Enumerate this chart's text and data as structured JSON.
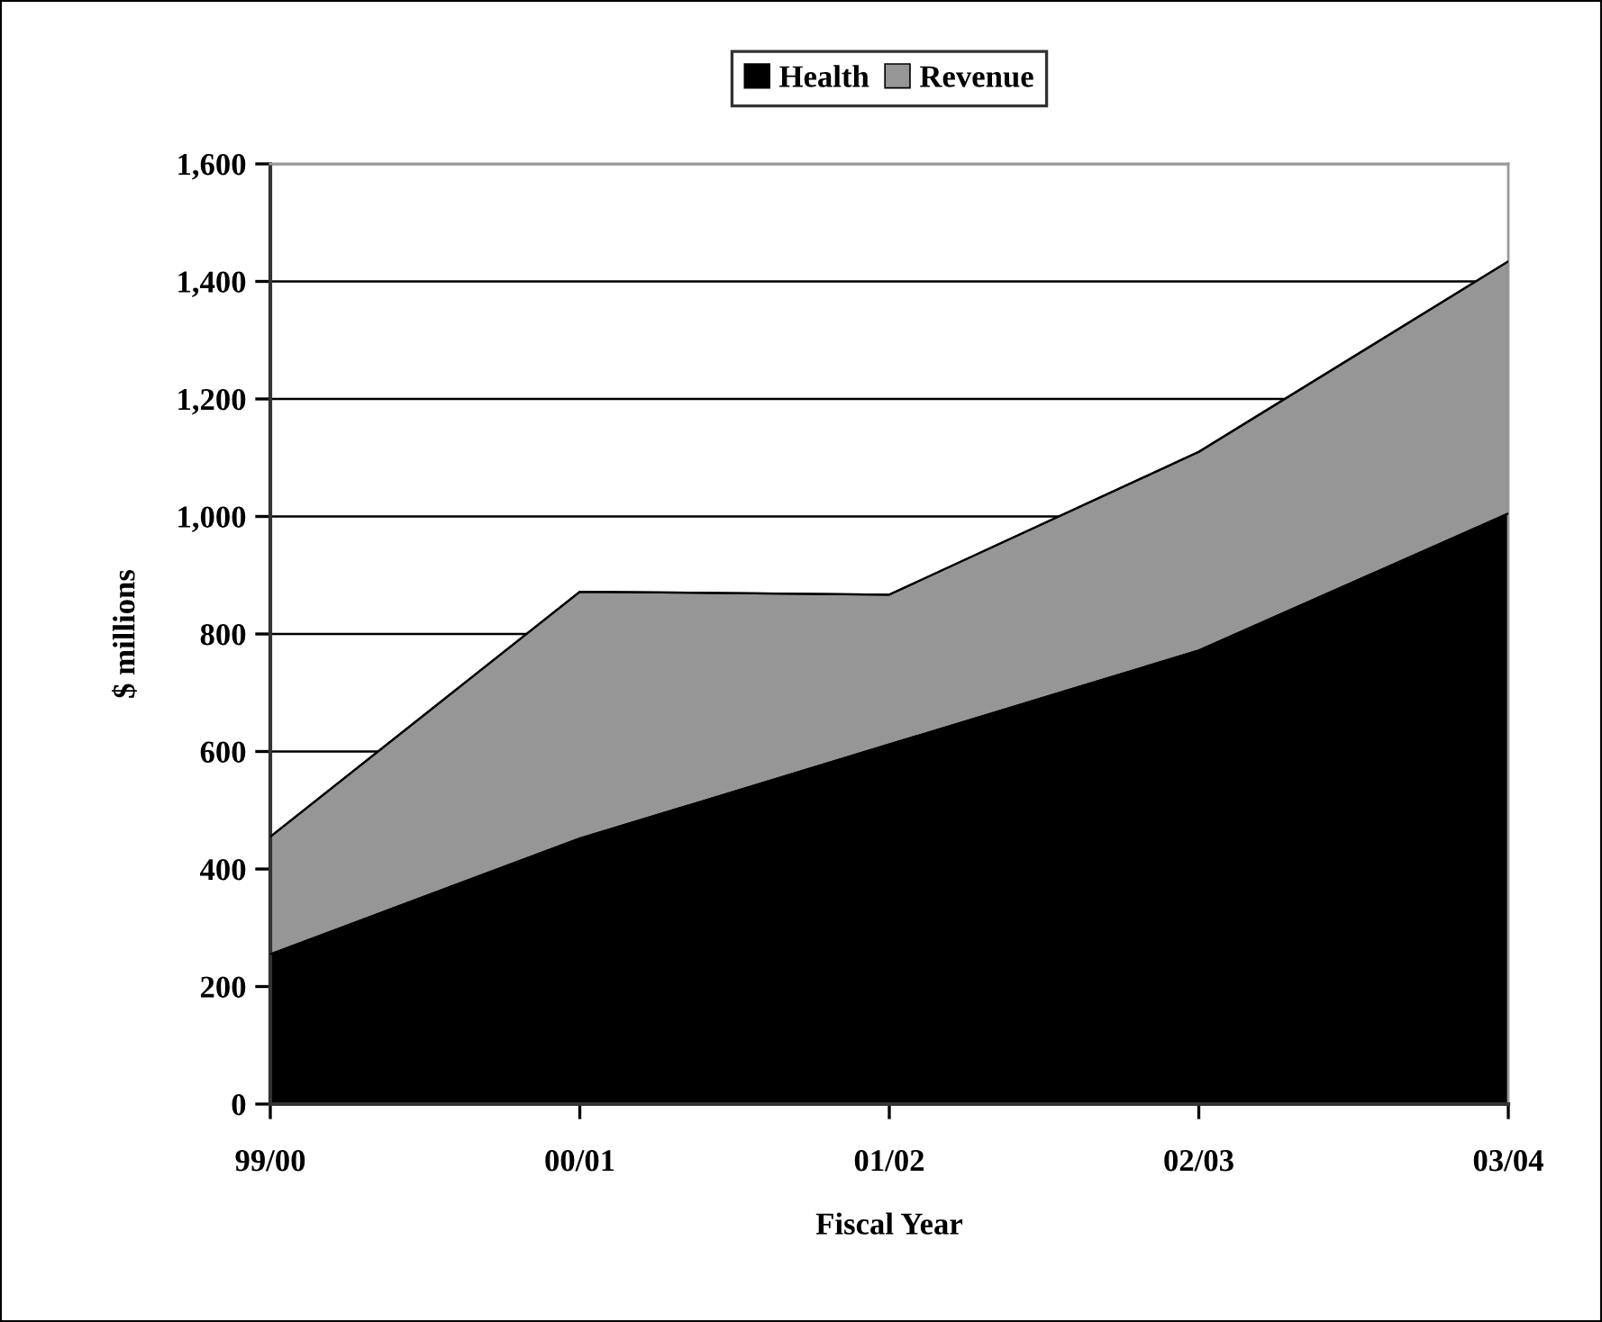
{
  "chart_data": {
    "type": "area",
    "stacked": true,
    "categories": [
      "99/00",
      "00/01",
      "01/02",
      "02/03",
      "03/04"
    ],
    "series": [
      {
        "name": "Health",
        "color": "#000000",
        "values": [
          255,
          452,
          612,
          772,
          1005
        ]
      },
      {
        "name": "Revenue",
        "color": "#969696",
        "values": [
          200,
          420,
          255,
          338,
          429
        ]
      }
    ],
    "xlabel": "Fiscal Year",
    "ylabel": "$ millions",
    "ylim": [
      0,
      1600
    ],
    "yticks": [
      0,
      200,
      400,
      600,
      800,
      {
        "value": 1000,
        "label": "1,000"
      },
      {
        "value": 1200,
        "label": "1,200"
      },
      {
        "value": 1400,
        "label": "1,400"
      },
      {
        "value": 1600,
        "label": "1,600"
      }
    ],
    "grid": "y",
    "legend": "top"
  }
}
